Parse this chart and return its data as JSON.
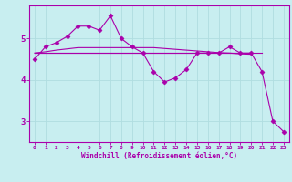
{
  "xlabel": "Windchill (Refroidissement éolien,°C)",
  "bg_color": "#c8eef0",
  "grid_color": "#b0dde0",
  "line_color": "#aa00aa",
  "x_vals": [
    0,
    1,
    2,
    3,
    4,
    5,
    6,
    7,
    8,
    9,
    10,
    11,
    12,
    13,
    14,
    15,
    16,
    17,
    18,
    19,
    20,
    21,
    22,
    23
  ],
  "series1": [
    4.5,
    4.8,
    4.9,
    5.05,
    5.3,
    5.3,
    5.2,
    5.55,
    5.0,
    4.8,
    4.65,
    4.2,
    3.95,
    4.05,
    4.25,
    4.65,
    4.65,
    4.65,
    4.8,
    4.65,
    4.65,
    4.2,
    3.0,
    2.75
  ],
  "series2": [
    4.65,
    4.65,
    4.65,
    4.65,
    4.65,
    4.65,
    4.65,
    4.65,
    4.65,
    4.65,
    4.65,
    4.65,
    4.65,
    4.65,
    4.65,
    4.65,
    4.65,
    4.65,
    4.65,
    4.65,
    4.65,
    4.65,
    null,
    null
  ],
  "series3": [
    4.65,
    4.68,
    4.72,
    4.75,
    4.78,
    4.78,
    4.78,
    4.78,
    4.78,
    4.78,
    4.78,
    4.78,
    4.76,
    4.74,
    4.72,
    4.7,
    4.68,
    4.66,
    4.65,
    4.63,
    4.62,
    null,
    null,
    null
  ],
  "series4": [
    4.65,
    4.65,
    4.65,
    4.65,
    4.65,
    4.65,
    4.65,
    4.65,
    4.65,
    4.65,
    4.65,
    4.65,
    4.65,
    4.65,
    4.65,
    4.65,
    4.65,
    4.65,
    4.65,
    4.65,
    4.65,
    null,
    null,
    null
  ],
  "yticks": [
    3,
    4,
    5
  ],
  "xlim": [
    -0.5,
    23.5
  ],
  "ylim": [
    2.5,
    5.8
  ]
}
